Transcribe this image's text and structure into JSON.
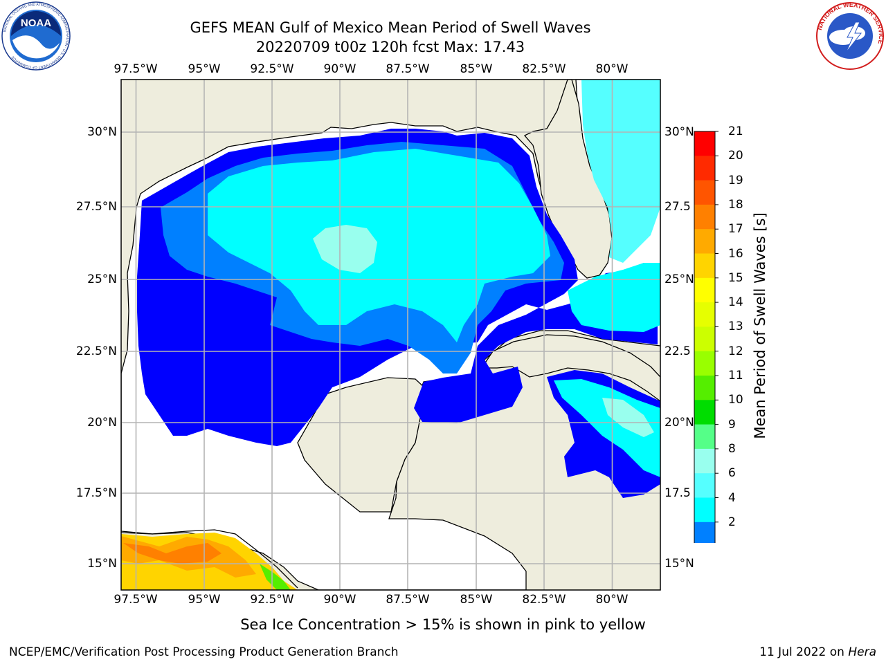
{
  "header": {
    "title_line1": "GEFS MEAN Gulf of Mexico Mean Period of Swell Waves",
    "title_line2": "20220709 t00z 120h fcst   Max: 17.43"
  },
  "map": {
    "region": "Gulf of Mexico",
    "lon_ticks": [
      "97.5°W",
      "95°W",
      "92.5°W",
      "90°W",
      "87.5°W",
      "85°W",
      "82.5°W",
      "80°W"
    ],
    "lat_ticks_left": [
      "30°N",
      "27.5°N",
      "25°N",
      "22.5°N",
      "20°N",
      "17.5°N",
      "15°N"
    ],
    "lat_ticks_right": [
      "30°N",
      "27.5",
      "25°N",
      "22.5",
      "20°N",
      "17.5",
      "15°N"
    ],
    "colors": {
      "land": "#eeeddd",
      "missing": "#ffffff",
      "grid": "#b4b4b4"
    }
  },
  "colorbar": {
    "title": "Mean Period of Swell Waves [s]",
    "labels": [
      "21",
      "20",
      "19",
      "18",
      "17",
      "16",
      "15",
      "14",
      "13",
      "12",
      "11",
      "10",
      "9",
      "8",
      "6",
      "4",
      "2"
    ],
    "colors": [
      "#ff0000",
      "#ff2a00",
      "#ff5500",
      "#ff8000",
      "#ffaa00",
      "#ffd400",
      "#ffff00",
      "#e6ff00",
      "#ccff00",
      "#99ff00",
      "#55ee00",
      "#00dd00",
      "#55ff88",
      "#99ffee",
      "#55ffff",
      "#00ffff",
      "#0080ff",
      "#0000ff"
    ]
  },
  "note": "Sea Ice Concentration > 15% is shown in pink to yellow",
  "footer": {
    "org": "NCEP/EMC/Verification Post Processing Product Generation Branch",
    "date": "11 Jul 2022 on ",
    "host": "Hera"
  },
  "logos": {
    "noaa_text": "NOAA",
    "noaa_ring": "NATIONAL OCEANIC AND ATMOSPHERIC ADMINISTRATION · U.S. DEPARTMENT OF COMMERCE",
    "nws_ring": "NATIONAL WEATHER SERVICE"
  }
}
